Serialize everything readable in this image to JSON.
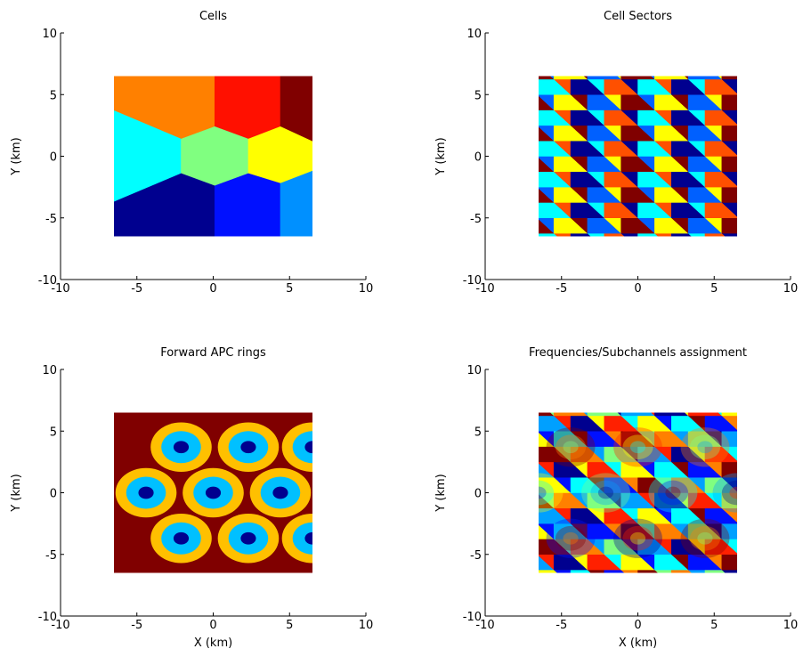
{
  "chart_data": [
    {
      "type": "heatmap",
      "title": "Cells",
      "xlabel": "",
      "ylabel": "Y (km)",
      "xlim": [
        -10,
        10
      ],
      "ylim": [
        -10,
        10
      ],
      "xticks": [
        -10,
        -5,
        0,
        5,
        10
      ],
      "yticks": [
        -10,
        -5,
        0,
        5,
        10
      ],
      "extent": {
        "x": [
          -6.5,
          6.5
        ],
        "y": [
          -6.5,
          6.5
        ]
      },
      "colormap": "jet",
      "regions": [
        {
          "name": "cell-top-left",
          "color": "#ff8000",
          "poly": [
            [
              -6.5,
              3.7
            ],
            [
              -2.1,
              1.4
            ],
            [
              0.1,
              1.4
            ],
            [
              0.1,
              6.5
            ],
            [
              -6.5,
              6.5
            ]
          ]
        },
        {
          "name": "cell-top-mid",
          "color": "#ff1000",
          "poly": [
            [
              0.1,
              6.5
            ],
            [
              0.1,
              1.4
            ],
            [
              2.3,
              1.4
            ],
            [
              4.4,
              2.2
            ],
            [
              4.4,
              6.5
            ]
          ]
        },
        {
          "name": "cell-top-right",
          "color": "#800000",
          "poly": [
            [
              4.4,
              6.5
            ],
            [
              4.4,
              2.2
            ],
            [
              6.5,
              1.2
            ],
            [
              6.5,
              6.5
            ]
          ]
        },
        {
          "name": "cell-left",
          "color": "#00ffff",
          "poly": [
            [
              -6.5,
              3.7
            ],
            [
              -2.1,
              1.4
            ],
            [
              -2.1,
              -1.4
            ],
            [
              -6.5,
              -3.7
            ]
          ]
        },
        {
          "name": "cell-center",
          "color": "#80ff80",
          "poly": [
            [
              -2.1,
              1.4
            ],
            [
              0.1,
              2.4
            ],
            [
              2.3,
              1.4
            ],
            [
              2.3,
              -1.4
            ],
            [
              0.1,
              -2.4
            ],
            [
              -2.1,
              -1.4
            ]
          ]
        },
        {
          "name": "cell-right",
          "color": "#ffff00",
          "poly": [
            [
              2.3,
              1.4
            ],
            [
              4.4,
              2.4
            ],
            [
              6.5,
              1.2
            ],
            [
              6.5,
              -1.2
            ],
            [
              4.4,
              -2.2
            ],
            [
              2.3,
              -1.4
            ]
          ]
        },
        {
          "name": "cell-bottom-left",
          "color": "#00008f",
          "poly": [
            [
              -6.5,
              -3.7
            ],
            [
              -2.1,
              -1.4
            ],
            [
              0.1,
              -2.4
            ],
            [
              0.1,
              -6.5
            ],
            [
              -6.5,
              -6.5
            ]
          ]
        },
        {
          "name": "cell-bottom-mid",
          "color": "#0010ff",
          "poly": [
            [
              0.1,
              -2.4
            ],
            [
              2.3,
              -1.4
            ],
            [
              4.4,
              -2.2
            ],
            [
              4.4,
              -6.5
            ],
            [
              0.1,
              -6.5
            ]
          ]
        },
        {
          "name": "cell-bottom-right",
          "color": "#0090ff",
          "poly": [
            [
              4.4,
              -2.2
            ],
            [
              6.5,
              -1.2
            ],
            [
              6.5,
              -6.5
            ],
            [
              4.4,
              -6.5
            ]
          ]
        }
      ]
    },
    {
      "type": "heatmap",
      "title": "Cell Sectors",
      "xlabel": "",
      "ylabel": "Y (km)",
      "xlim": [
        -10,
        10
      ],
      "ylim": [
        -10,
        10
      ],
      "xticks": [
        -10,
        -5,
        0,
        5,
        10
      ],
      "yticks": [
        -10,
        -5,
        0,
        5,
        10
      ],
      "extent": {
        "x": [
          -6.5,
          6.5
        ],
        "y": [
          -6.5,
          6.5
        ]
      },
      "colormap": "jet",
      "pattern": "three-sector hexagonal tiling",
      "palette": [
        "#800000",
        "#ff5000",
        "#ffff00",
        "#00ffff",
        "#0060ff",
        "#00008f"
      ]
    },
    {
      "type": "heatmap",
      "title": "Forward APC rings",
      "xlabel": "X (km)",
      "ylabel": "Y (km)",
      "xlim": [
        -10,
        10
      ],
      "ylim": [
        -10,
        10
      ],
      "xticks": [
        -10,
        -5,
        0,
        5,
        10
      ],
      "yticks": [
        -10,
        -5,
        0,
        5,
        10
      ],
      "extent": {
        "x": [
          -6.5,
          6.5
        ],
        "y": [
          -6.5,
          6.5
        ]
      },
      "colormap": "jet",
      "background": "#800000",
      "ring_colors": [
        "#ffc000",
        "#00c0ff",
        "#00008f"
      ],
      "ring_radii_km": [
        2.0,
        1.3,
        0.5
      ],
      "centers": [
        [
          -2.1,
          3.7
        ],
        [
          2.3,
          3.7
        ],
        [
          6.5,
          3.7
        ],
        [
          -4.4,
          0
        ],
        [
          0,
          0
        ],
        [
          4.4,
          0
        ],
        [
          -2.1,
          -3.7
        ],
        [
          2.3,
          -3.7
        ],
        [
          6.5,
          -3.7
        ]
      ]
    },
    {
      "type": "heatmap",
      "title": "Frequencies/Subchannels assignment",
      "xlabel": "X (km)",
      "ylabel": "Y (km)",
      "xlim": [
        -10,
        10
      ],
      "ylim": [
        -10,
        10
      ],
      "xticks": [
        -10,
        -5,
        0,
        5,
        10
      ],
      "yticks": [
        -10,
        -5,
        0,
        5,
        10
      ],
      "extent": {
        "x": [
          -6.5,
          6.5
        ],
        "y": [
          -6.5,
          6.5
        ]
      },
      "colormap": "jet",
      "pattern": "sector tiling overlaid with concentric rings",
      "palette": [
        "#800000",
        "#ff2000",
        "#ff8000",
        "#ffff00",
        "#80ff80",
        "#00ffff",
        "#00a0ff",
        "#0010ff",
        "#00008f"
      ]
    }
  ]
}
